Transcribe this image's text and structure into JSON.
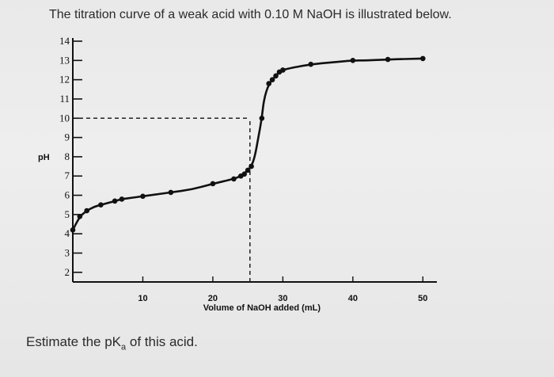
{
  "question": {
    "title": "The titration curve of a weak acid with 0.10 M NaOH is illustrated below.",
    "prompt_prefix": "Estimate the pK",
    "prompt_sub": "a",
    "prompt_suffix": " of this acid."
  },
  "chart_data": {
    "type": "line",
    "title": "",
    "xlabel": "Volume of NaOH added (mL)",
    "ylabel": "pH",
    "xlim": [
      0,
      52
    ],
    "ylim": [
      1.5,
      14
    ],
    "x_ticks": [
      10,
      20,
      30,
      40,
      50
    ],
    "x_tick_labels": [
      "10",
      "20",
      "30",
      "40",
      "50"
    ],
    "y_ticks": [
      2,
      3,
      4,
      5,
      6,
      7,
      8,
      9,
      10,
      11,
      12,
      13,
      14
    ],
    "y_tick_labels": [
      "2",
      "3",
      "4",
      "5",
      "6",
      "7",
      "8",
      "9",
      "10",
      "11",
      "12",
      "13",
      "14"
    ],
    "grid": false,
    "series": [
      {
        "color": "#111111",
        "x": [
          0,
          1,
          2,
          3,
          4,
          5,
          6,
          7,
          8,
          10,
          12,
          14,
          17,
          20,
          23,
          24,
          25,
          25.5,
          26,
          26.5,
          27,
          27.3,
          28,
          29,
          29.5,
          30,
          31,
          34,
          37,
          40,
          42,
          45,
          50
        ],
        "y": [
          4.2,
          4.9,
          5.2,
          5.4,
          5.5,
          5.6,
          5.7,
          5.8,
          5.85,
          5.95,
          6.05,
          6.15,
          6.3,
          6.6,
          6.85,
          7.0,
          7.3,
          7.5,
          8.0,
          9.0,
          10.0,
          11.0,
          11.8,
          12.2,
          12.4,
          12.5,
          12.6,
          12.8,
          12.9,
          13.0,
          13.0,
          13.05,
          13.1
        ]
      }
    ],
    "markers_x": [
      0,
      1,
      2,
      4,
      6,
      7,
      10,
      14,
      20,
      23,
      24,
      24.5,
      25,
      25.5,
      27,
      28,
      28.5,
      29,
      29.5,
      30,
      34,
      40,
      45,
      50
    ],
    "markers_y": [
      4.2,
      4.9,
      5.2,
      5.5,
      5.7,
      5.8,
      5.95,
      6.15,
      6.6,
      6.85,
      7.0,
      7.1,
      7.3,
      7.5,
      10.0,
      11.8,
      12.0,
      12.2,
      12.4,
      12.5,
      12.8,
      13.0,
      13.05,
      13.1
    ],
    "reference_lines": [
      {
        "orientation": "horizontal",
        "y": 10,
        "x_from": 0,
        "x_to": 25.3,
        "style": "dashed"
      },
      {
        "orientation": "vertical",
        "x": 25.3,
        "y_from": 1.5,
        "y_to": 10,
        "style": "dashed"
      }
    ]
  }
}
